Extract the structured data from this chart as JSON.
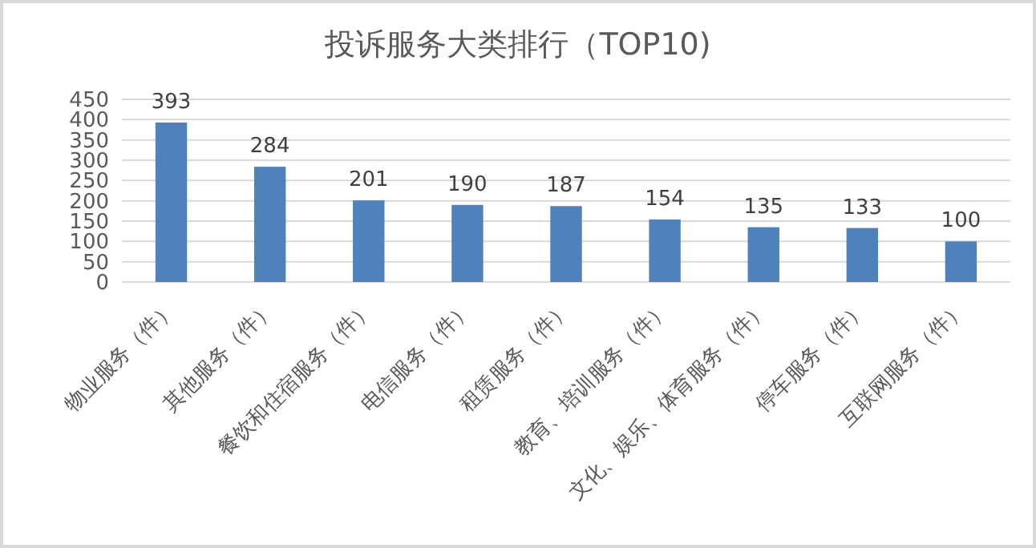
{
  "chart_data": {
    "type": "bar",
    "title": "投诉服务大类排行（TOP10)",
    "categories": [
      "物业服务（件）",
      "其他服务（件）",
      "餐饮和住宿服务（件）",
      "电信服务（件）",
      "租赁服务（件）",
      "教育、培训服务（件）",
      "文化、娱乐、体育服务（件）",
      "停车服务（件）",
      "互联网服务（件）"
    ],
    "values": [
      393,
      284,
      201,
      190,
      187,
      154,
      135,
      133,
      100
    ],
    "color": "#4f81bd",
    "ylim": [
      0,
      450
    ],
    "yticks": [
      0,
      50,
      100,
      150,
      200,
      250,
      300,
      350,
      400,
      450
    ],
    "grid": "y",
    "data_labels": true
  }
}
